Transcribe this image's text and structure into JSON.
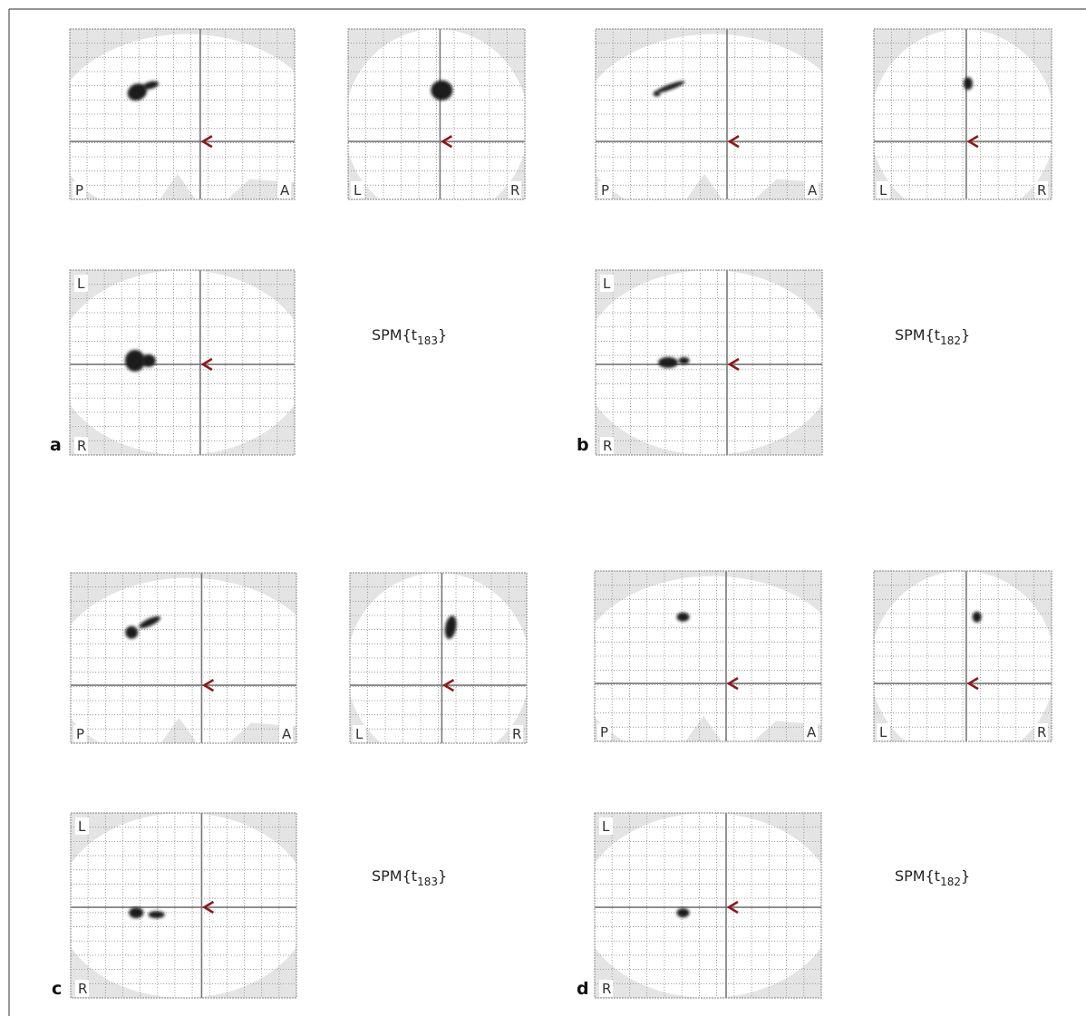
{
  "panels": [
    {
      "label": "a",
      "sagittal": {
        "posterior": "P",
        "anterior": "A"
      },
      "coronal": {
        "left": "L",
        "right": "R"
      },
      "axial": {
        "left": "L",
        "right": "R"
      },
      "statistic": {
        "prefix": "SPM{t",
        "df": "183",
        "suffix": "}"
      }
    },
    {
      "label": "b",
      "sagittal": {
        "posterior": "P",
        "anterior": "A"
      },
      "coronal": {
        "left": "L",
        "right": "R"
      },
      "axial": {
        "left": "L",
        "right": "R"
      },
      "statistic": {
        "prefix": "SPM{t",
        "df": "182",
        "suffix": "}"
      }
    },
    {
      "label": "c",
      "sagittal": {
        "posterior": "P",
        "anterior": "A"
      },
      "coronal": {
        "left": "L",
        "right": "R"
      },
      "axial": {
        "left": "L",
        "right": "R"
      },
      "statistic": {
        "prefix": "SPM{t",
        "df": "183",
        "suffix": "}"
      }
    },
    {
      "label": "d",
      "sagittal": {
        "posterior": "P",
        "anterior": "A"
      },
      "coronal": {
        "left": "L",
        "right": "R"
      },
      "axial": {
        "left": "L",
        "right": "R"
      },
      "statistic": {
        "prefix": "SPM{t",
        "df": "182",
        "suffix": "}"
      }
    }
  ]
}
